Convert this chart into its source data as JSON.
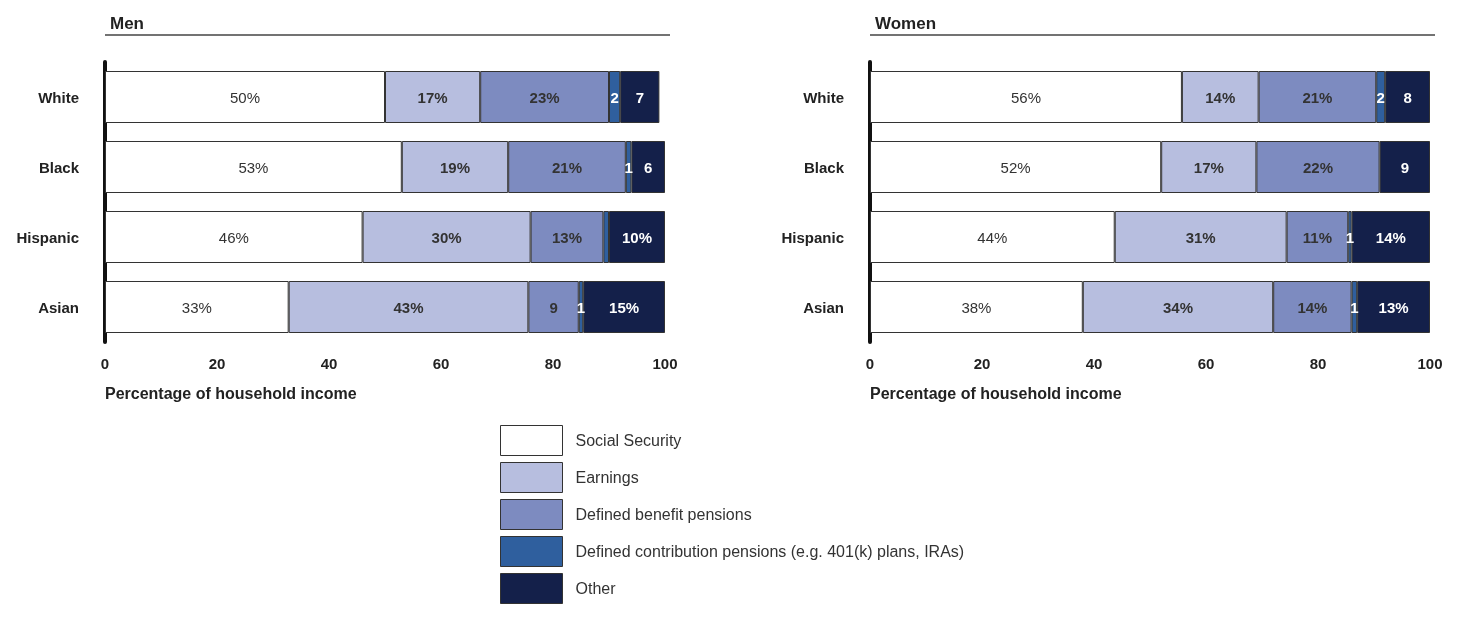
{
  "chart_data": [
    {
      "type": "bar",
      "title": "Men",
      "orientation": "horizontal",
      "stacked": true,
      "categories": [
        "White",
        "Black",
        "Hispanic",
        "Asian"
      ],
      "xlabel": "Percentage of household income",
      "xlim": [
        0,
        100
      ],
      "xticks": [
        0,
        20,
        40,
        60,
        80,
        100
      ],
      "grid": false,
      "legend": "bottom",
      "series": [
        {
          "name": "Social Security",
          "color": "#ffffff",
          "values": [
            50,
            53,
            46,
            32.8
          ],
          "value_labels": [
            "50%",
            "53%",
            "46%",
            "33%"
          ]
        },
        {
          "name": "Earnings",
          "color": "#b7bedf",
          "values": [
            17,
            19,
            30,
            42.8
          ],
          "value_labels": [
            "17%",
            "19%",
            "30%",
            "43%"
          ]
        },
        {
          "name": "Defined benefit pensions",
          "color": "#7d8bc0",
          "values": [
            23,
            21,
            13,
            9
          ],
          "value_labels": [
            "23%",
            "21%",
            "13%",
            "9"
          ]
        },
        {
          "name": "Defined contribution pensions (e.g. 401(k) plans, IRAs)",
          "color": "#2f5f9e",
          "values": [
            2,
            1,
            1,
            0.8
          ],
          "value_labels": [
            "2",
            "1",
            null,
            "1"
          ]
        },
        {
          "name": "Other",
          "color": "#14204a",
          "values": [
            7,
            6,
            10,
            14.6
          ],
          "value_labels": [
            "7",
            "6",
            "10%",
            "15%"
          ]
        }
      ]
    },
    {
      "type": "bar",
      "title": "Women",
      "orientation": "horizontal",
      "stacked": true,
      "categories": [
        "White",
        "Black",
        "Hispanic",
        "Asian"
      ],
      "xlabel": "Percentage of household income",
      "xlim": [
        0,
        100
      ],
      "xticks": [
        0,
        20,
        40,
        60,
        80,
        100
      ],
      "grid": false,
      "legend": false,
      "series": [
        {
          "color": "#ffffff",
          "values": [
            55.7,
            52,
            43.7,
            38
          ],
          "value_labels": [
            "56%",
            "52%",
            "44%",
            "38%"
          ]
        },
        {
          "color": "#b7bedf",
          "values": [
            13.7,
            17,
            30.7,
            34
          ],
          "value_labels": [
            "14%",
            "17%",
            "31%",
            "34%"
          ]
        },
        {
          "color": "#7d8bc0",
          "values": [
            21,
            22,
            11,
            14
          ],
          "value_labels": [
            "21%",
            "22%",
            "11%",
            "14%"
          ]
        },
        {
          "color": "#2f5f9e",
          "values": [
            1.6,
            null,
            0.6,
            1
          ],
          "value_labels": [
            "2",
            null,
            "1",
            "1"
          ]
        },
        {
          "color": "#14204a",
          "values": [
            8,
            9,
            14,
            13
          ],
          "value_labels": [
            "8",
            "9",
            "14%",
            "13%"
          ]
        }
      ]
    }
  ]
}
